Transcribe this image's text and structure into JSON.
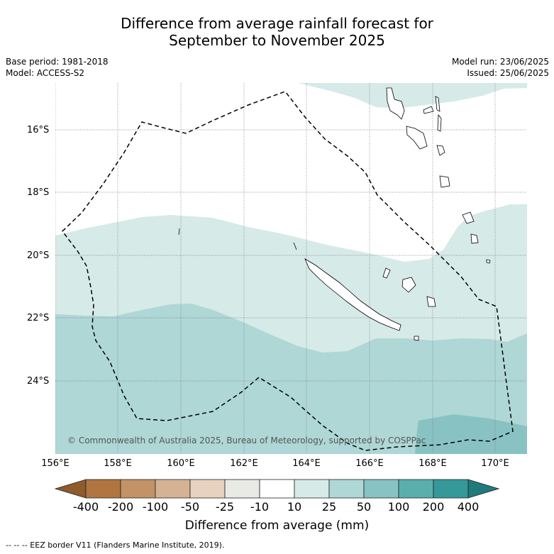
{
  "title_line1": "Difference from average rainfall forecast for",
  "title_line2": "September to November 2025",
  "base_period": "Base period: 1981-2018",
  "model": "Model: ACCESS-S2",
  "model_run": "Model run: 23/06/2025",
  "issued": "Issued: 25/06/2025",
  "copyright": "© Commonwealth of Australia 2025, Bureau of Meteorology, supported by COSPPac",
  "lat_labels": [
    "16°S",
    "18°S",
    "20°S",
    "22°S",
    "24°S"
  ],
  "lon_labels": [
    "156°E",
    "158°E",
    "160°E",
    "162°E",
    "164°E",
    "166°E",
    "168°E",
    "170°E"
  ],
  "colorbar": {
    "labels": [
      "-400",
      "-200",
      "-100",
      "-50",
      "-25",
      "-10",
      "10",
      "25",
      "50",
      "100",
      "200",
      "400"
    ],
    "colors": [
      "#8f5a2c",
      "#b07540",
      "#c39266",
      "#d5b293",
      "#e6d2be",
      "#e9e9e6",
      "#ffffff",
      "#d6eae8",
      "#aed7d6",
      "#88c2c2",
      "#5aaeac",
      "#35999a",
      "#1f7a7c"
    ],
    "title": "Difference from average (mm)"
  },
  "footnote": "--  --  -- EEZ border V11 (Flanders Marine Institute, 2019).",
  "legend_colors": {
    "light_teal": "#d6eae8",
    "mid_teal": "#aed7d6",
    "dark_teal": "#88c2c2"
  }
}
